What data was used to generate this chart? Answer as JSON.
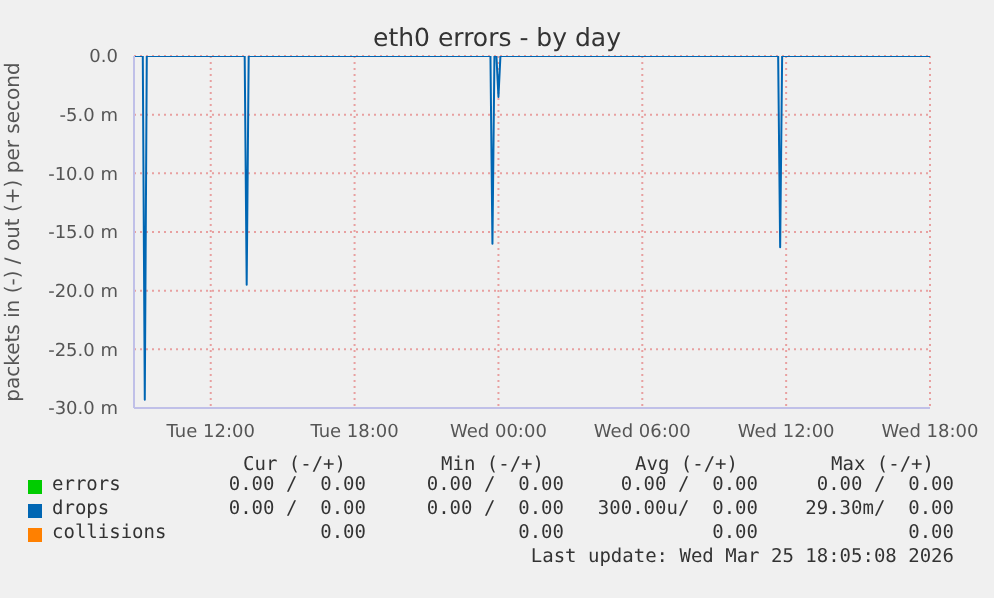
{
  "chart_data": {
    "type": "line",
    "title": "eth0 errors - by day",
    "ylabel": "packets in (-) / out (+) per second",
    "xlim": [
      "2026-03-24T08:48",
      "2026-03-25T18:00"
    ],
    "xticks": [
      {
        "value": "2026-03-24T12:00",
        "label": "Tue 12:00"
      },
      {
        "value": "2026-03-24T18:00",
        "label": "Tue 18:00"
      },
      {
        "value": "2026-03-25T00:00",
        "label": "Wed 00:00"
      },
      {
        "value": "2026-03-25T06:00",
        "label": "Wed 06:00"
      },
      {
        "value": "2026-03-25T12:00",
        "label": "Wed 12:00"
      },
      {
        "value": "2026-03-25T18:00",
        "label": "Wed 18:00"
      }
    ],
    "ylim": [
      -30,
      0
    ],
    "yticks": [
      {
        "value": -30,
        "label": "-30.0 m"
      },
      {
        "value": -25,
        "label": "-25.0 m"
      },
      {
        "value": -20,
        "label": "-20.0 m"
      },
      {
        "value": -15,
        "label": "-15.0 m"
      },
      {
        "value": -10,
        "label": "-10.0 m"
      },
      {
        "value": -5,
        "label": "-5.0 m"
      },
      {
        "value": 0,
        "label": "0.0"
      }
    ],
    "grid": true,
    "legend": "bottom",
    "series": [
      {
        "name": "errors",
        "color": "#00cc00"
      },
      {
        "name": "drops",
        "color": "#0066b3",
        "x": [
          "2026-03-24T08:48",
          "2026-03-24T09:10",
          "2026-03-24T09:15",
          "2026-03-24T09:20",
          "2026-03-24T13:25",
          "2026-03-24T13:30",
          "2026-03-24T13:35",
          "2026-03-24T23:40",
          "2026-03-24T23:45",
          "2026-03-24T23:50",
          "2026-03-24T23:55",
          "2026-03-25T00:00",
          "2026-03-25T00:05",
          "2026-03-25T11:40",
          "2026-03-25T11:45",
          "2026-03-25T11:50",
          "2026-03-25T18:00"
        ],
        "values": [
          0,
          0,
          -29.3,
          0,
          0,
          -19.5,
          0,
          0,
          -16,
          0,
          0,
          -3.5,
          0,
          0,
          -16.3,
          0,
          0
        ]
      },
      {
        "name": "collisions",
        "color": "#ff8000"
      }
    ],
    "annotations": [
      "Cur (-/+)",
      "Min (-/+)",
      "Avg (-/+)",
      "Max (-/+)",
      "0.00 /  0.00",
      "0.00 /  0.00",
      "0.00 /  0.00",
      "0.00 /  0.00",
      "0.00 /  0.00",
      "0.00 /  0.00",
      "300.00u/  0.00",
      "29.30m/  0.00",
      "0.00",
      "0.00",
      "0.00",
      "0.00",
      "Last update: Wed Mar 25 18:05:08 2026"
    ]
  }
}
